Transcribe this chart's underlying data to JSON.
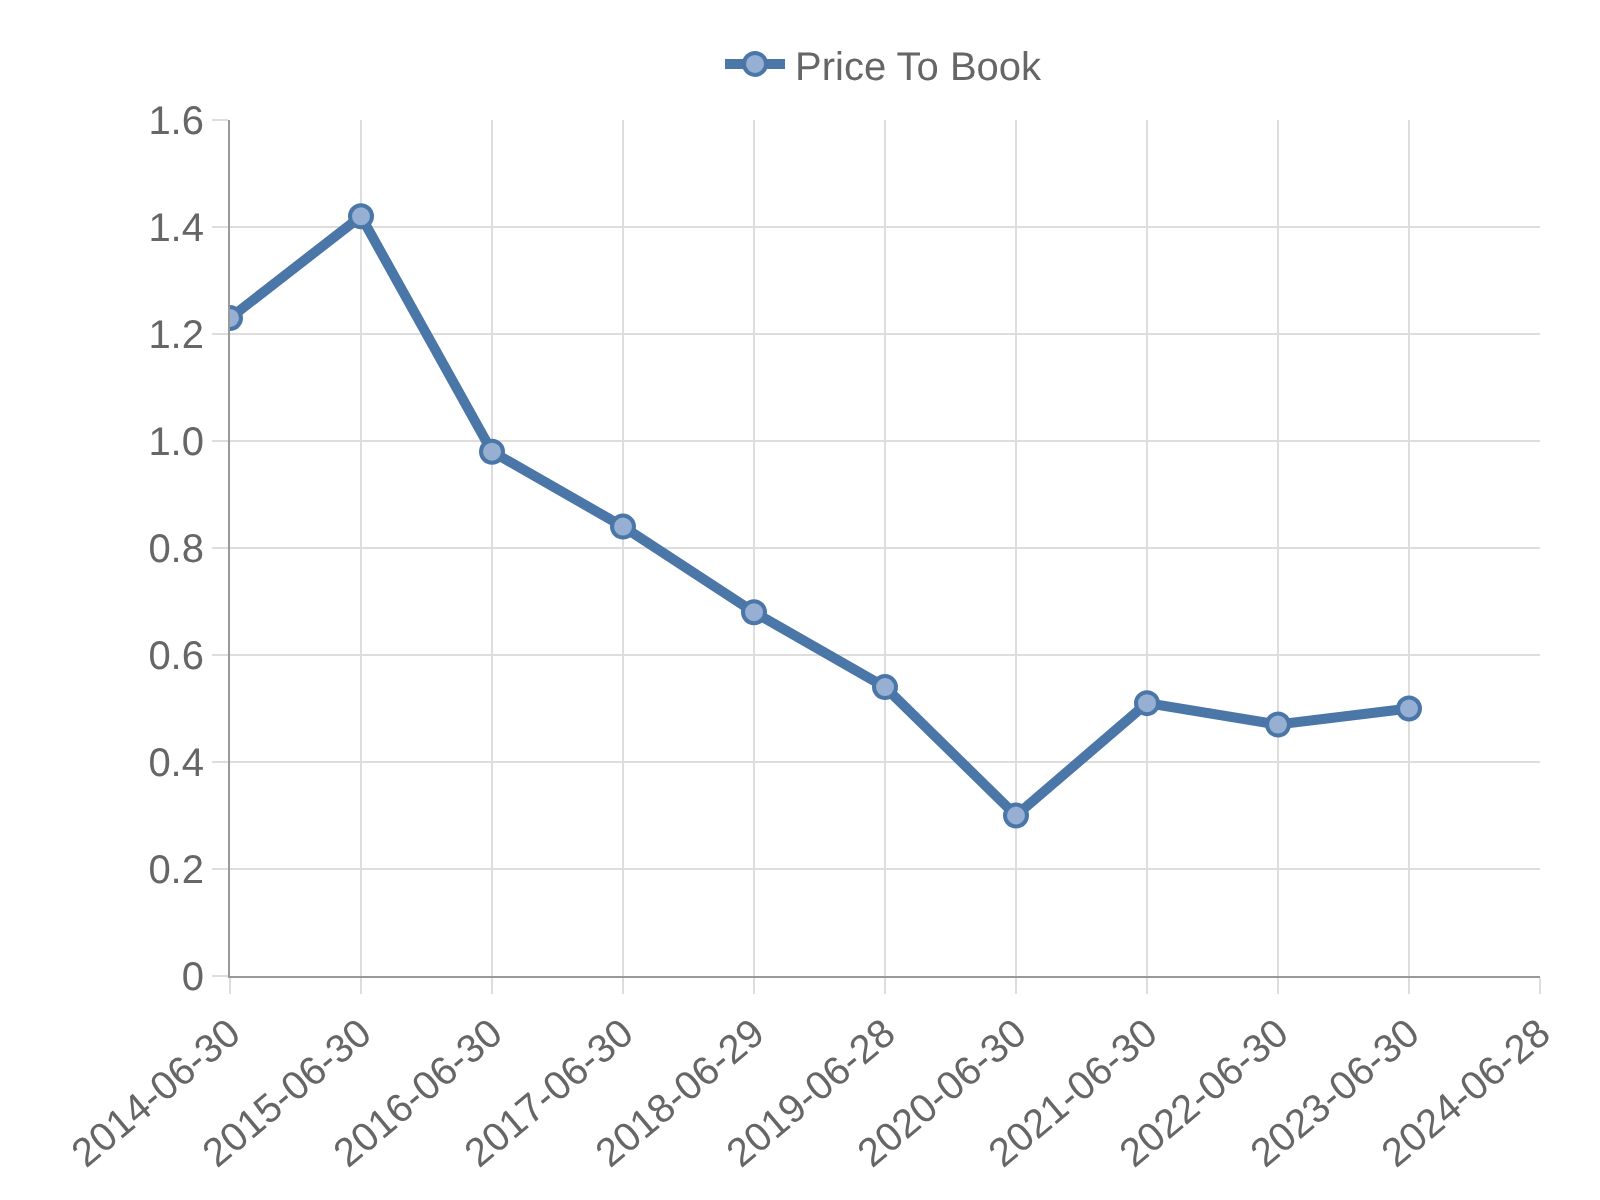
{
  "chart_data": {
    "type": "line",
    "categories": [
      "2014-06-30",
      "2015-06-30",
      "2016-06-30",
      "2017-06-30",
      "2018-06-29",
      "2019-06-28",
      "2020-06-30",
      "2021-06-30",
      "2022-06-30",
      "2023-06-30",
      "2024-06-28"
    ],
    "series": [
      {
        "name": "Price To Book",
        "color": "#4a76a8",
        "values": [
          1.23,
          1.42,
          0.98,
          0.84,
          0.68,
          0.54,
          0.3,
          0.51,
          0.47,
          0.5,
          null
        ]
      }
    ],
    "ylim": [
      0,
      1.6
    ],
    "yticks": [
      {
        "value": 0,
        "label": "0"
      },
      0.2,
      0.4,
      0.6,
      0.8,
      {
        "value": 1.0,
        "label": "1.0"
      },
      1.2,
      1.4,
      1.6
    ],
    "grid": true,
    "legend": "top",
    "marker": "circle",
    "line_style": "solid"
  }
}
